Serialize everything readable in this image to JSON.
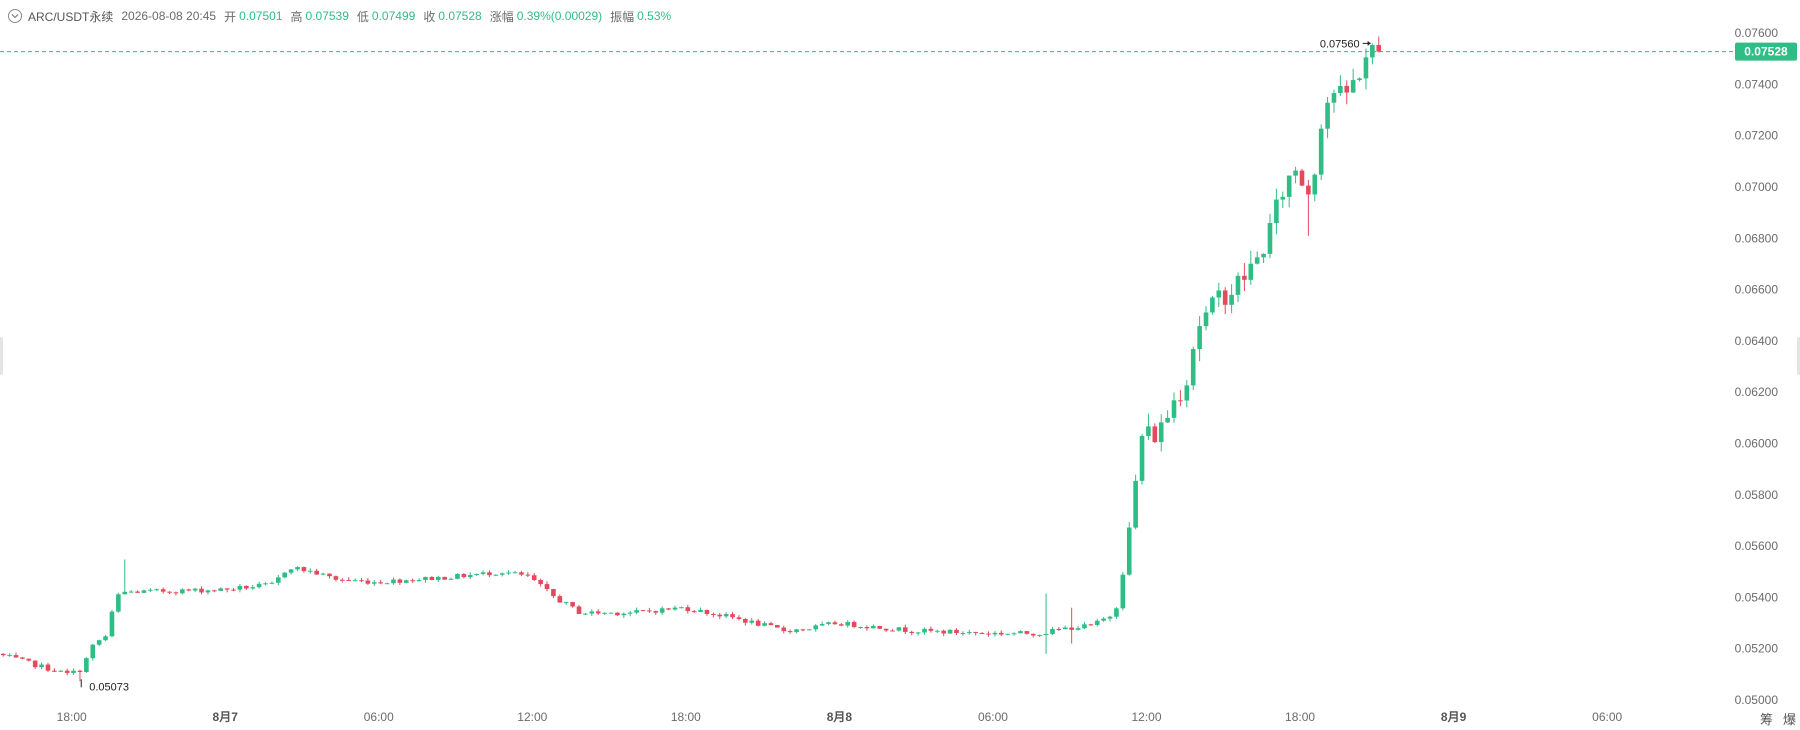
{
  "header": {
    "symbol": "ARC/USDT永续",
    "datetime": "2026-08-08 20:45",
    "open_label": "开",
    "open": "0.07501",
    "high_label": "高",
    "high": "0.07539",
    "low_label": "低",
    "low": "0.07499",
    "close_label": "收",
    "close": "0.07528",
    "change_label": "涨幅",
    "change": "0.39%(0.00029)",
    "amplitude_label": "振幅",
    "amplitude": "0.53%"
  },
  "corner": {
    "left": "筹",
    "right": "爆"
  },
  "colors": {
    "up": "#2ebd85",
    "down": "#e6495c",
    "last_price_line": "#2ebd85",
    "axis_text": "#6b6b6b"
  },
  "chart_data": {
    "type": "candlestick",
    "y_ticks": [
      "0.07600",
      "0.07400",
      "0.07200",
      "0.07000",
      "0.06800",
      "0.06600",
      "0.06400",
      "0.06200",
      "0.06000",
      "0.05800",
      "0.05600",
      "0.05400",
      "0.05200",
      "0.05000"
    ],
    "ylim": [
      0.05,
      0.0762
    ],
    "x_ticks": [
      {
        "label": "18:00",
        "h": 0
      },
      {
        "label": "8月7",
        "h": 6
      },
      {
        "label": "06:00",
        "h": 12
      },
      {
        "label": "12:00",
        "h": 18
      },
      {
        "label": "18:00",
        "h": 24
      },
      {
        "label": "8月8",
        "h": 30
      },
      {
        "label": "06:00",
        "h": 36
      },
      {
        "label": "12:00",
        "h": 42
      },
      {
        "label": "18:00",
        "h": 48
      },
      {
        "label": "8月9",
        "h": 54
      },
      {
        "label": "06:00",
        "h": 60
      }
    ],
    "x_range_hours": [
      -2.8,
      64.8
    ],
    "last_price": "0.07528",
    "last_price_value": 0.07528,
    "high_marker": {
      "label": "0.07560",
      "value": 0.0756,
      "h": 50.75
    },
    "low_marker": {
      "label": "0.05073",
      "value": 0.05073,
      "h": 0.25
    },
    "interval_hours": 0.25,
    "keypoints": [
      [
        -2.8,
        0.0518
      ],
      [
        0.0,
        0.051
      ],
      [
        0.5,
        0.0512
      ],
      [
        1.0,
        0.0522
      ],
      [
        1.5,
        0.0525
      ],
      [
        1.75,
        0.0536
      ],
      [
        2.0,
        0.0542
      ],
      [
        6.0,
        0.0543
      ],
      [
        8.0,
        0.0545
      ],
      [
        8.6,
        0.0552
      ],
      [
        9.5,
        0.055
      ],
      [
        10.5,
        0.0547
      ],
      [
        12.0,
        0.0546
      ],
      [
        15.0,
        0.0548
      ],
      [
        17.0,
        0.055
      ],
      [
        18.0,
        0.0548
      ],
      [
        19.0,
        0.054
      ],
      [
        20.0,
        0.0534
      ],
      [
        22.0,
        0.0534
      ],
      [
        24.0,
        0.0536
      ],
      [
        26.0,
        0.0532
      ],
      [
        28.0,
        0.0527
      ],
      [
        29.0,
        0.0528
      ],
      [
        30.0,
        0.053
      ],
      [
        33.0,
        0.0527
      ],
      [
        36.0,
        0.0526
      ],
      [
        38.0,
        0.0526
      ],
      [
        39.0,
        0.0528
      ],
      [
        40.0,
        0.0529
      ],
      [
        40.9,
        0.0534
      ],
      [
        41.3,
        0.0555
      ],
      [
        41.6,
        0.0575
      ],
      [
        41.9,
        0.0603
      ],
      [
        42.6,
        0.0604
      ],
      [
        43.2,
        0.0617
      ],
      [
        43.7,
        0.0626
      ],
      [
        44.1,
        0.0646
      ],
      [
        44.6,
        0.0651
      ],
      [
        45.0,
        0.0658
      ],
      [
        45.5,
        0.066
      ],
      [
        46.0,
        0.0666
      ],
      [
        46.5,
        0.0672
      ],
      [
        47.0,
        0.0685
      ],
      [
        47.5,
        0.07
      ],
      [
        48.0,
        0.0708
      ],
      [
        48.4,
        0.0697
      ],
      [
        48.7,
        0.0708
      ],
      [
        49.0,
        0.073
      ],
      [
        49.4,
        0.0738
      ],
      [
        49.8,
        0.0734
      ],
      [
        50.3,
        0.0742
      ],
      [
        50.75,
        0.0752
      ],
      [
        51.0,
        0.07528
      ]
    ]
  }
}
